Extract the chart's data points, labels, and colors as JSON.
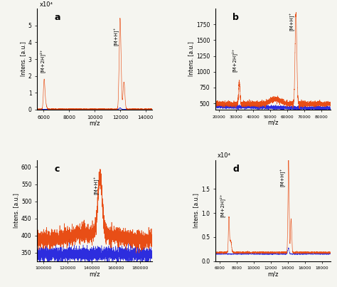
{
  "panels": [
    "a",
    "b",
    "c",
    "d"
  ],
  "panel_a": {
    "xlim": [
      5500,
      14500
    ],
    "ylim": [
      0,
      60000.0
    ],
    "yticks": [
      0,
      10000.0,
      20000.0,
      30000.0,
      40000.0,
      50000.0
    ],
    "yticklabels": [
      "0",
      "1",
      "2",
      "3",
      "4",
      "5"
    ],
    "ylabel_multiplier": "x10⁴",
    "xticks": [
      6000,
      8000,
      10000,
      12000,
      14000
    ],
    "xticklabels": [
      "6000",
      "8000",
      "10000",
      "12000",
      "14000"
    ],
    "peak1_x": 6050,
    "peak1_y": 14000,
    "peak2_x": 12000,
    "peak2_y": 54000,
    "peak2b_x": 12300,
    "peak2b_y": 16000,
    "label1": "[M+2H]²⁺",
    "label2": "[M+H]⁺",
    "baseline_orange": 300,
    "baseline_blue": 150,
    "noise_orange": 120,
    "noise_blue": 60
  },
  "panel_b": {
    "xlim": [
      18000,
      85000
    ],
    "ylim": [
      400,
      2000
    ],
    "yticks": [
      500,
      750,
      1000,
      1250,
      1500,
      1750
    ],
    "yticklabels": [
      "500",
      "750",
      "1000",
      "1250",
      "1500",
      "1750"
    ],
    "xticks": [
      20000,
      30000,
      40000,
      50000,
      60000,
      70000,
      80000
    ],
    "xticklabels": [
      "20000",
      "30000",
      "40000",
      "50000",
      "60000",
      "70000",
      "80000"
    ],
    "peak1_x": 32000,
    "peak1_y": 350,
    "peak2_x": 65000,
    "peak2_y": 1450,
    "label1": "[M+2H]²⁺",
    "label2": "[M+H]⁺",
    "baseline_orange": 490,
    "baseline_blue": 450,
    "noise_orange": 20,
    "noise_blue": 15
  },
  "panel_c": {
    "xlim": [
      95000,
      190000
    ],
    "ylim": [
      325,
      620
    ],
    "yticks": [
      350,
      400,
      450,
      500,
      550,
      600
    ],
    "yticklabels": [
      "350",
      "400",
      "450",
      "500",
      "550",
      "600"
    ],
    "xticks": [
      100000,
      120000,
      140000,
      160000,
      180000
    ],
    "xticklabels": [
      "100000",
      "120000",
      "140000",
      "160000",
      "180000"
    ],
    "peak1_x": 147000,
    "peak1_y": 170,
    "label1": "[M+H]⁺",
    "baseline_orange": 385,
    "baseline_blue": 345,
    "noise_orange": 12,
    "noise_blue": 10
  },
  "panel_d": {
    "xlim": [
      5500,
      19000
    ],
    "ylim": [
      0.0,
      2.1
    ],
    "yticks": [
      0.0,
      0.5,
      1.0,
      1.5
    ],
    "yticklabels": [
      "0.0",
      "0.5",
      "1.0",
      "1.5"
    ],
    "ylabel_multiplier": "x10⁴",
    "xticks": [
      6000,
      8000,
      10000,
      12000,
      14000,
      16000,
      18000
    ],
    "xticklabels": [
      "6000",
      "8000",
      "10000",
      "12000",
      "14000",
      "16000",
      "18000"
    ],
    "peak1_x": 7100,
    "peak1_y": 0.7,
    "peak2_x": 14100,
    "peak2_y": 1.95,
    "peak2b_x": 14400,
    "peak2b_y": 0.7,
    "label1": "[M+2H]²⁺",
    "label2": "[M+H]⁺",
    "baseline_orange": 0.18,
    "baseline_blue": 0.15,
    "noise_orange": 0.008,
    "noise_blue": 0.005
  },
  "orange_color": "#e8450a",
  "blue_color": "#2222dd",
  "xlabel": "m/z",
  "ylabel": "Intens. [a.u.]",
  "bg_color": "#f5f5f0"
}
